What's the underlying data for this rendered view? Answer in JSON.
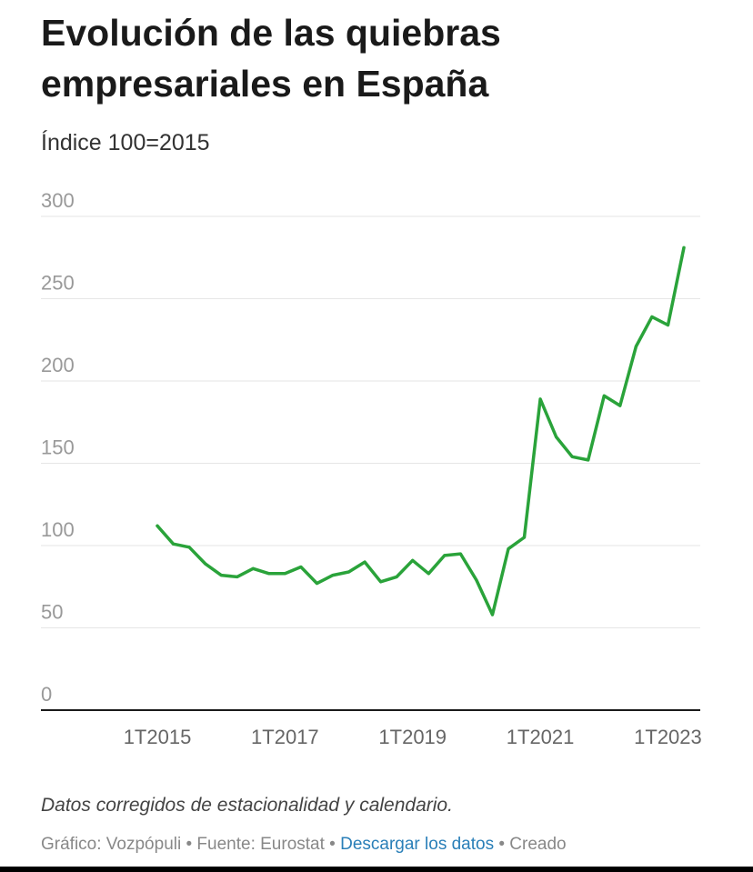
{
  "header": {
    "title": "Evolución de las quiebras empresariales en España",
    "subtitle": "Índice 100=2015"
  },
  "footer": {
    "note": "Datos corregidos de estacionalidad y calendario.",
    "source_prefix": "Gráfico: Vozpópuli",
    "separator": " • ",
    "source": "Fuente: Eurostat",
    "download": "Descargar los datos",
    "created": "Creado"
  },
  "colors": {
    "line": "#2aa33a",
    "grid": "#e6e6e6",
    "axis": "#1a1a1a",
    "tick": "#999999",
    "xtick": "#666666"
  },
  "chart_data": {
    "type": "line",
    "title": "Evolución de las quiebras empresariales en España",
    "subtitle": "Índice 100=2015",
    "ylim": [
      0,
      300
    ],
    "yticks": [
      0,
      50,
      100,
      150,
      200,
      250,
      300
    ],
    "xlim": [
      2015,
      2023.75
    ],
    "xticks": [
      {
        "label": "1T2015",
        "x": 2015
      },
      {
        "label": "1T2017",
        "x": 2017
      },
      {
        "label": "1T2019",
        "x": 2019
      },
      {
        "label": "1T2021",
        "x": 2021
      },
      {
        "label": "1T2023",
        "x": 2023
      }
    ],
    "grid": true,
    "series": [
      {
        "points": [
          {
            "period": "1T2015",
            "x": 2015.0,
            "y": 112
          },
          {
            "period": "2T2015",
            "x": 2015.25,
            "y": 101
          },
          {
            "period": "3T2015",
            "x": 2015.5,
            "y": 99
          },
          {
            "period": "4T2015",
            "x": 2015.75,
            "y": 89
          },
          {
            "period": "1T2016",
            "x": 2016.0,
            "y": 82
          },
          {
            "period": "2T2016",
            "x": 2016.25,
            "y": 81
          },
          {
            "period": "3T2016",
            "x": 2016.5,
            "y": 86
          },
          {
            "period": "4T2016",
            "x": 2016.75,
            "y": 83
          },
          {
            "period": "1T2017",
            "x": 2017.0,
            "y": 83
          },
          {
            "period": "2T2017",
            "x": 2017.25,
            "y": 87
          },
          {
            "period": "3T2017",
            "x": 2017.5,
            "y": 77
          },
          {
            "period": "4T2017",
            "x": 2017.75,
            "y": 82
          },
          {
            "period": "1T2018",
            "x": 2018.0,
            "y": 84
          },
          {
            "period": "2T2018",
            "x": 2018.25,
            "y": 90
          },
          {
            "period": "3T2018",
            "x": 2018.5,
            "y": 78
          },
          {
            "period": "4T2018",
            "x": 2018.75,
            "y": 81
          },
          {
            "period": "1T2019",
            "x": 2019.0,
            "y": 91
          },
          {
            "period": "2T2019",
            "x": 2019.25,
            "y": 83
          },
          {
            "period": "3T2019",
            "x": 2019.5,
            "y": 94
          },
          {
            "period": "4T2019",
            "x": 2019.75,
            "y": 95
          },
          {
            "period": "1T2020",
            "x": 2020.0,
            "y": 79
          },
          {
            "period": "2T2020",
            "x": 2020.25,
            "y": 58
          },
          {
            "period": "3T2020",
            "x": 2020.5,
            "y": 98
          },
          {
            "period": "4T2020",
            "x": 2020.75,
            "y": 105
          },
          {
            "period": "1T2021",
            "x": 2021.0,
            "y": 189
          },
          {
            "period": "2T2021",
            "x": 2021.25,
            "y": 166
          },
          {
            "period": "3T2021",
            "x": 2021.5,
            "y": 154
          },
          {
            "period": "4T2021",
            "x": 2021.75,
            "y": 152
          },
          {
            "period": "1T2022",
            "x": 2022.0,
            "y": 191
          },
          {
            "period": "2T2022",
            "x": 2022.25,
            "y": 185
          },
          {
            "period": "3T2022",
            "x": 2022.5,
            "y": 221
          },
          {
            "period": "4T2022",
            "x": 2022.75,
            "y": 239
          },
          {
            "period": "1T2023",
            "x": 2023.0,
            "y": 234
          },
          {
            "period": "2T2023",
            "x": 2023.25,
            "y": 281
          }
        ]
      }
    ]
  }
}
